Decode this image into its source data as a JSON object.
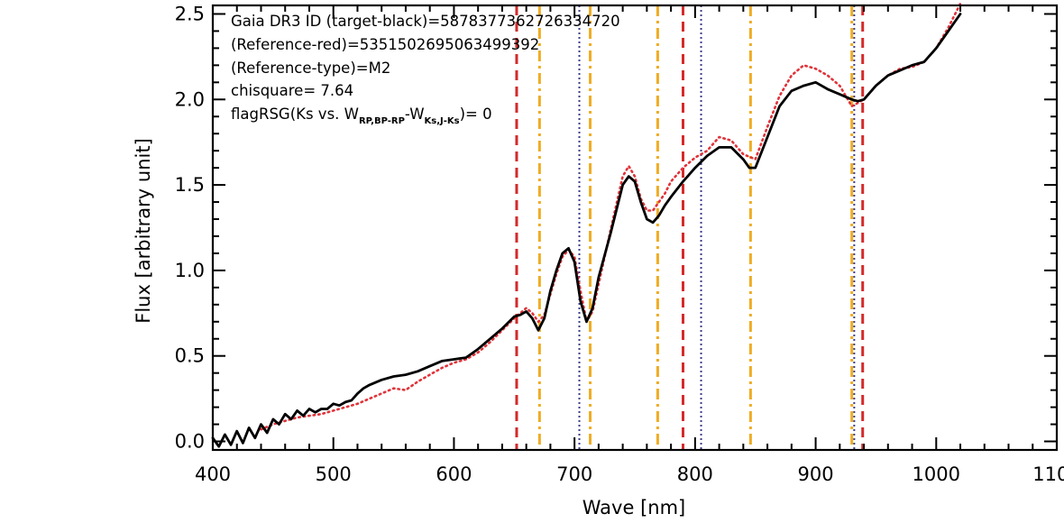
{
  "chart_data": {
    "type": "line",
    "xlabel": "Wave [nm]",
    "ylabel": "Flux [arbitrary unit]",
    "xlim": [
      400,
      1100
    ],
    "ylim": [
      -0.05,
      2.55
    ],
    "x_ticks": [
      400,
      500,
      600,
      700,
      800,
      900,
      1000,
      1100
    ],
    "x_tick_labels": [
      "400",
      "500",
      "600",
      "700",
      "800",
      "900",
      "1000",
      "1100"
    ],
    "y_ticks": [
      0.0,
      0.5,
      1.0,
      1.5,
      2.0,
      2.5
    ],
    "y_tick_labels": [
      "0.0",
      "0.5",
      "1.0",
      "1.5",
      "2.0",
      "2.5"
    ],
    "grid": false,
    "annotations": {
      "line1": "Gaia DR3 ID (target-black)=5878377362726334720",
      "line2": "(Reference-red)=5351502695063499392",
      "line3": "(Reference-type)=M2",
      "line4": "chisquare= 7.64",
      "line5_pre": "flagRSG(Ks vs. W",
      "line5_sub1": "RP,BP-RP",
      "line5_mid": "-W",
      "line5_sub2": "Ks,J-Ks",
      "line5_post": ")= 0"
    },
    "series": [
      {
        "color": "#000000",
        "style": "solid",
        "x": [
          400,
          405,
          410,
          415,
          420,
          425,
          430,
          435,
          440,
          445,
          450,
          455,
          460,
          465,
          470,
          475,
          480,
          485,
          490,
          495,
          500,
          505,
          510,
          515,
          520,
          525,
          530,
          540,
          550,
          560,
          570,
          580,
          590,
          600,
          610,
          620,
          630,
          640,
          650,
          655,
          660,
          665,
          670,
          675,
          680,
          685,
          690,
          695,
          700,
          705,
          710,
          715,
          720,
          730,
          740,
          745,
          750,
          755,
          760,
          765,
          770,
          775,
          780,
          790,
          800,
          810,
          820,
          830,
          840,
          845,
          850,
          860,
          870,
          880,
          890,
          900,
          910,
          920,
          930,
          935,
          940,
          950,
          960,
          970,
          980,
          990,
          1000,
          1010,
          1020
        ],
        "y": [
          0.02,
          -0.03,
          0.04,
          -0.02,
          0.06,
          -0.01,
          0.08,
          0.02,
          0.1,
          0.05,
          0.13,
          0.1,
          0.16,
          0.13,
          0.18,
          0.15,
          0.19,
          0.17,
          0.19,
          0.19,
          0.22,
          0.21,
          0.23,
          0.24,
          0.28,
          0.31,
          0.33,
          0.36,
          0.38,
          0.39,
          0.41,
          0.44,
          0.47,
          0.48,
          0.49,
          0.54,
          0.6,
          0.66,
          0.73,
          0.74,
          0.76,
          0.72,
          0.65,
          0.72,
          0.88,
          1.0,
          1.1,
          1.13,
          1.05,
          0.82,
          0.7,
          0.78,
          0.96,
          1.22,
          1.5,
          1.55,
          1.52,
          1.4,
          1.3,
          1.28,
          1.32,
          1.38,
          1.43,
          1.52,
          1.6,
          1.67,
          1.72,
          1.72,
          1.65,
          1.6,
          1.6,
          1.78,
          1.96,
          2.05,
          2.08,
          2.1,
          2.06,
          2.03,
          2.0,
          1.99,
          2.0,
          2.08,
          2.14,
          2.17,
          2.2,
          2.22,
          2.3,
          2.4,
          2.5
        ]
      },
      {
        "color": "#e0333a",
        "style": "dotted",
        "x": [
          440,
          450,
          460,
          470,
          480,
          490,
          500,
          510,
          520,
          530,
          540,
          550,
          560,
          570,
          580,
          590,
          600,
          610,
          620,
          630,
          640,
          650,
          655,
          660,
          665,
          670,
          675,
          680,
          685,
          690,
          695,
          700,
          705,
          710,
          715,
          720,
          730,
          740,
          745,
          750,
          755,
          760,
          765,
          770,
          775,
          780,
          790,
          800,
          810,
          820,
          830,
          840,
          850,
          860,
          870,
          880,
          890,
          900,
          910,
          920,
          925,
          930,
          940,
          950,
          960,
          970,
          980,
          990,
          1000,
          1010,
          1020
        ],
        "y": [
          0.07,
          0.1,
          0.12,
          0.14,
          0.15,
          0.16,
          0.18,
          0.2,
          0.22,
          0.25,
          0.28,
          0.31,
          0.3,
          0.35,
          0.39,
          0.43,
          0.46,
          0.48,
          0.52,
          0.58,
          0.65,
          0.72,
          0.75,
          0.78,
          0.75,
          0.7,
          0.74,
          0.86,
          0.98,
          1.08,
          1.12,
          1.08,
          0.88,
          0.7,
          0.76,
          0.92,
          1.24,
          1.55,
          1.61,
          1.55,
          1.42,
          1.35,
          1.35,
          1.4,
          1.45,
          1.52,
          1.6,
          1.66,
          1.7,
          1.78,
          1.76,
          1.68,
          1.65,
          1.84,
          2.02,
          2.14,
          2.2,
          2.18,
          2.14,
          2.08,
          2.02,
          1.96,
          2.0,
          2.08,
          2.14,
          2.18,
          2.19,
          2.22,
          2.3,
          2.42,
          2.56
        ]
      }
    ],
    "vlines": [
      {
        "x": 652,
        "style": "dashed",
        "color": "#d42a2a"
      },
      {
        "x": 671,
        "style": "dashdot",
        "color": "#efac24"
      },
      {
        "x": 704,
        "style": "dotted",
        "color": "#3d3d8c"
      },
      {
        "x": 713,
        "style": "dashdot",
        "color": "#efac24"
      },
      {
        "x": 769,
        "style": "dashdot",
        "color": "#efac24"
      },
      {
        "x": 790,
        "style": "dashed",
        "color": "#d42a2a"
      },
      {
        "x": 805,
        "style": "dotted",
        "color": "#3d3d8c"
      },
      {
        "x": 846,
        "style": "dashdot",
        "color": "#efac24"
      },
      {
        "x": 930,
        "style": "dashdot",
        "color": "#efac24"
      },
      {
        "x": 932,
        "style": "dotted",
        "color": "#3d3d8c"
      },
      {
        "x": 939,
        "style": "dashed",
        "color": "#d42a2a"
      }
    ]
  }
}
